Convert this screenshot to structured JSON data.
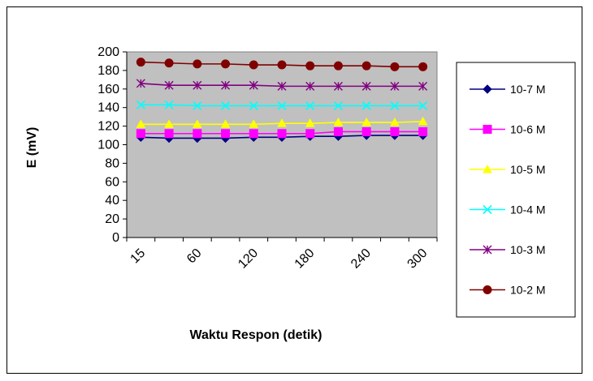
{
  "chart_data": {
    "type": "line",
    "title": "",
    "xlabel": "Waktu Respon (detik)",
    "ylabel": "E (mV)",
    "ylim": [
      0,
      200
    ],
    "y_ticks": [
      0,
      20,
      40,
      60,
      80,
      100,
      120,
      140,
      160,
      180,
      200
    ],
    "x": [
      15,
      30,
      60,
      90,
      120,
      150,
      180,
      210,
      240,
      270,
      300
    ],
    "x_tick_labels": [
      "15",
      "60",
      "120",
      "180",
      "240",
      "300"
    ],
    "grid": false,
    "plot_background": "#c0c0c0",
    "legend_position": "right",
    "series": [
      {
        "name": "10-7 M",
        "color": "#000080",
        "marker": "diamond",
        "values": [
          108,
          107,
          107,
          107,
          108,
          108,
          109,
          109,
          110,
          110,
          110
        ]
      },
      {
        "name": "10-6 M",
        "color": "#ff00ff",
        "marker": "square",
        "values": [
          112,
          112,
          112,
          112,
          112,
          112,
          112,
          114,
          114,
          114,
          114
        ]
      },
      {
        "name": "10-5 M",
        "color": "#ffff00",
        "marker": "triangle",
        "values": [
          122,
          122,
          122,
          122,
          122,
          123,
          123,
          124,
          124,
          124,
          125
        ]
      },
      {
        "name": "10-4 M",
        "color": "#00ffff",
        "marker": "x",
        "values": [
          143,
          143,
          142,
          142,
          142,
          142,
          142,
          142,
          142,
          142,
          142
        ]
      },
      {
        "name": "10-3 M",
        "color": "#800080",
        "marker": "star",
        "values": [
          166,
          164,
          164,
          164,
          164,
          163,
          163,
          163,
          163,
          163,
          163
        ]
      },
      {
        "name": "10-2 M",
        "color": "#800000",
        "marker": "circle",
        "values": [
          189,
          188,
          187,
          187,
          186,
          186,
          185,
          185,
          185,
          184,
          184
        ]
      }
    ]
  }
}
